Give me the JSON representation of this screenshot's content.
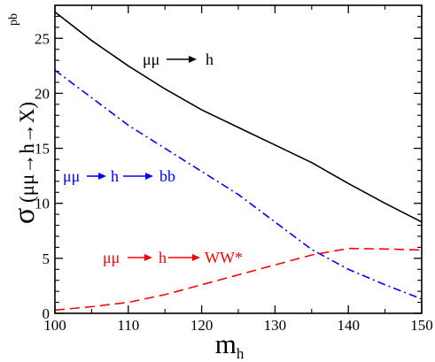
{
  "chart_data": {
    "type": "line",
    "x_axis": {
      "label_main": "m",
      "label_sub": "h",
      "range": [
        100,
        150
      ],
      "ticks": [
        100,
        110,
        120,
        130,
        140,
        150
      ],
      "tick_labels": [
        "100",
        "110",
        "120",
        "130",
        "140",
        "150"
      ]
    },
    "y_axis": {
      "label_sigma": "σ",
      "label_paren": "(μμ→h→X)",
      "unit": "pb",
      "range": [
        0,
        28
      ],
      "ticks": [
        0,
        5,
        10,
        15,
        20,
        25
      ],
      "tick_labels": [
        "0",
        "5",
        "10",
        "15",
        "20",
        "25"
      ]
    },
    "grid": false,
    "series": [
      {
        "color": "#000000",
        "dash": "solid",
        "x": [
          100,
          105,
          110,
          115,
          120,
          125,
          130,
          135,
          140,
          145,
          150
        ],
        "y": [
          27.4,
          24.8,
          22.5,
          20.4,
          18.5,
          16.9,
          15.3,
          13.7,
          11.8,
          10.0,
          8.3
        ]
      },
      {
        "color": "#0000ff",
        "dash": "dashdot",
        "x": [
          100,
          105,
          110,
          115,
          120,
          125,
          130,
          135,
          140,
          145,
          150
        ],
        "y": [
          22.1,
          19.6,
          17.1,
          15.0,
          12.9,
          10.8,
          8.3,
          5.8,
          4.0,
          2.6,
          1.3
        ]
      },
      {
        "color": "#ff0000",
        "dash": "dashed",
        "x": [
          100,
          105,
          110,
          115,
          120,
          125,
          130,
          135,
          140,
          145,
          150
        ],
        "y": [
          0.3,
          0.6,
          1.0,
          1.7,
          2.6,
          3.5,
          4.4,
          5.3,
          5.9,
          5.85,
          5.75
        ]
      }
    ],
    "annotations": [
      {
        "parts": [
          "μμ",
          "h"
        ],
        "color": "#000000"
      },
      {
        "parts": [
          "μμ",
          "h",
          "bb"
        ],
        "color": "#0000ff"
      },
      {
        "parts": [
          "μμ",
          "h",
          "WW*"
        ],
        "color": "#ff0000"
      }
    ]
  }
}
